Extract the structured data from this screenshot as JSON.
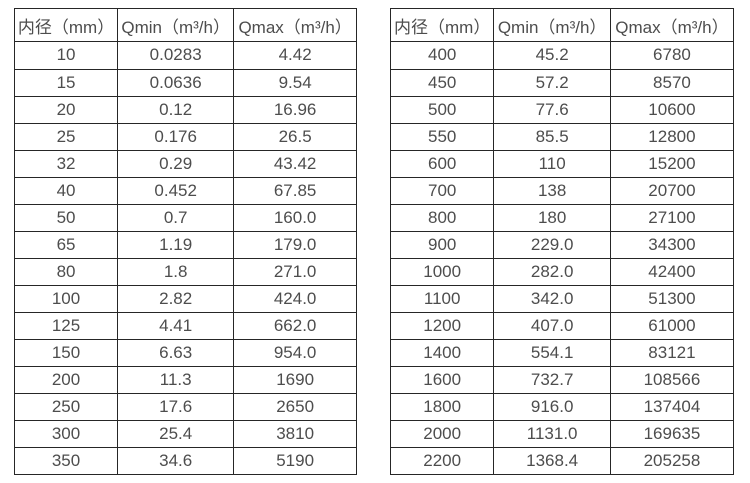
{
  "page": {
    "background": "#ffffff",
    "text_color": "#4d4d4d",
    "border_color": "#262626"
  },
  "tables": [
    {
      "name": "flow-rate-table-small-diameters",
      "headers": [
        "内径（mm）",
        "Qmin（m³/h）",
        "Qmax（m³/h）"
      ],
      "rows": [
        [
          "10",
          "0.0283",
          "4.42"
        ],
        [
          "15",
          "0.0636",
          "9.54"
        ],
        [
          "20",
          "0.12",
          "16.96"
        ],
        [
          "25",
          "0.176",
          "26.5"
        ],
        [
          "32",
          "0.29",
          "43.42"
        ],
        [
          "40",
          "0.452",
          "67.85"
        ],
        [
          "50",
          "0.7",
          "160.0"
        ],
        [
          "65",
          "1.19",
          "179.0"
        ],
        [
          "80",
          "1.8",
          "271.0"
        ],
        [
          "100",
          "2.82",
          "424.0"
        ],
        [
          "125",
          "4.41",
          "662.0"
        ],
        [
          "150",
          "6.63",
          "954.0"
        ],
        [
          "200",
          "11.3",
          "1690"
        ],
        [
          "250",
          "17.6",
          "2650"
        ],
        [
          "300",
          "25.4",
          "3810"
        ],
        [
          "350",
          "34.6",
          "5190"
        ]
      ]
    },
    {
      "name": "flow-rate-table-large-diameters",
      "headers": [
        "内径（mm）",
        "Qmin（m³/h）",
        "Qmax（m³/h）"
      ],
      "rows": [
        [
          "400",
          "45.2",
          "6780"
        ],
        [
          "450",
          "57.2",
          "8570"
        ],
        [
          "500",
          "77.6",
          "10600"
        ],
        [
          "550",
          "85.5",
          "12800"
        ],
        [
          "600",
          "110",
          "15200"
        ],
        [
          "700",
          "138",
          "20700"
        ],
        [
          "800",
          "180",
          "27100"
        ],
        [
          "900",
          "229.0",
          "34300"
        ],
        [
          "1000",
          "282.0",
          "42400"
        ],
        [
          "1100",
          "342.0",
          "51300"
        ],
        [
          "1200",
          "407.0",
          "61000"
        ],
        [
          "1400",
          "554.1",
          "83121"
        ],
        [
          "1600",
          "732.7",
          "108566"
        ],
        [
          "1800",
          "916.0",
          "137404"
        ],
        [
          "2000",
          "1131.0",
          "169635"
        ],
        [
          "2200",
          "1368.4",
          "205258"
        ]
      ]
    }
  ]
}
